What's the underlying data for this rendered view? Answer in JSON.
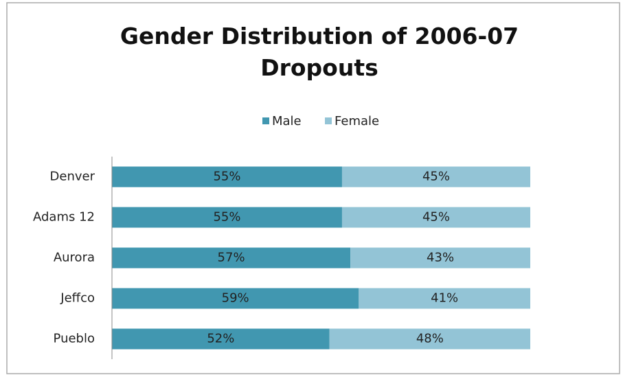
{
  "chart_data": {
    "type": "bar",
    "orientation": "horizontal",
    "stacked": true,
    "title": "Gender Distribution of 2006-07 Dropouts",
    "categories": [
      "Denver",
      "Adams 12",
      "Aurora",
      "Jeffco",
      "Pueblo"
    ],
    "series": [
      {
        "name": "Male",
        "color": "#4197b0",
        "values": [
          55,
          55,
          57,
          59,
          52
        ],
        "value_labels": [
          "55%",
          "55%",
          "57%",
          "59%",
          "52%"
        ]
      },
      {
        "name": "Female",
        "color": "#93c4d6",
        "values": [
          45,
          45,
          43,
          41,
          48
        ],
        "value_labels": [
          "45%",
          "45%",
          "43%",
          "41%",
          "48%"
        ]
      }
    ],
    "xlim": [
      0,
      100
    ],
    "legend": "top"
  }
}
